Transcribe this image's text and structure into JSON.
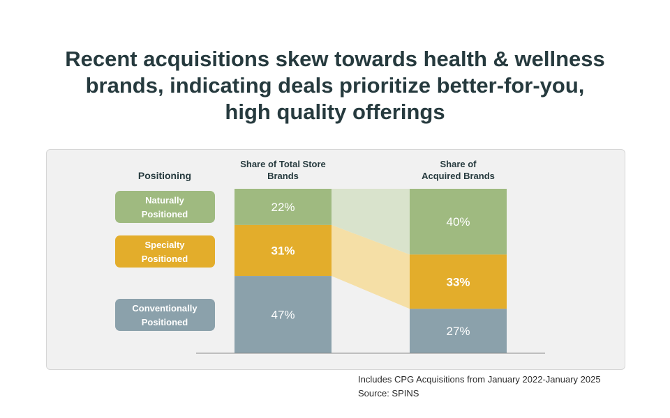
{
  "title_lines": [
    "Recent acquisitions skew towards health & wellness",
    "brands, indicating deals prioritize better-for-you,",
    "high quality offerings"
  ],
  "footnote": {
    "line1": "Includes CPG Acquisitions from January 2022-January 2025",
    "line2": "Source: SPINS"
  },
  "chart_data": {
    "type": "bar",
    "stacked": "100%",
    "legend_title": "Positioning",
    "legend_placement": "left",
    "categories": [
      [
        "Share of Total Store",
        "Brands"
      ],
      [
        "Share of",
        "Acquired Brands"
      ]
    ],
    "series": [
      {
        "name": [
          "Naturally",
          "Positioned"
        ],
        "values": [
          22,
          40
        ],
        "labels": [
          "22%",
          "40%"
        ],
        "color": "#9fba80",
        "band_color": "#d9e3cc"
      },
      {
        "name": [
          "Specialty",
          "Positioned"
        ],
        "values": [
          31,
          33
        ],
        "labels": [
          "31%",
          "33%"
        ],
        "color": "#e3ad2b",
        "band_color": "#f5dfa6"
      },
      {
        "name": [
          "Conventionally",
          "Positioned"
        ],
        "values": [
          47,
          27
        ],
        "labels": [
          "47%",
          "27%"
        ],
        "color": "#8ba1ab"
      }
    ],
    "bold_labels": [
      [
        false,
        false
      ],
      [
        true,
        true
      ],
      [
        false,
        false
      ]
    ],
    "ylim": [
      0,
      100
    ],
    "grid": false
  }
}
